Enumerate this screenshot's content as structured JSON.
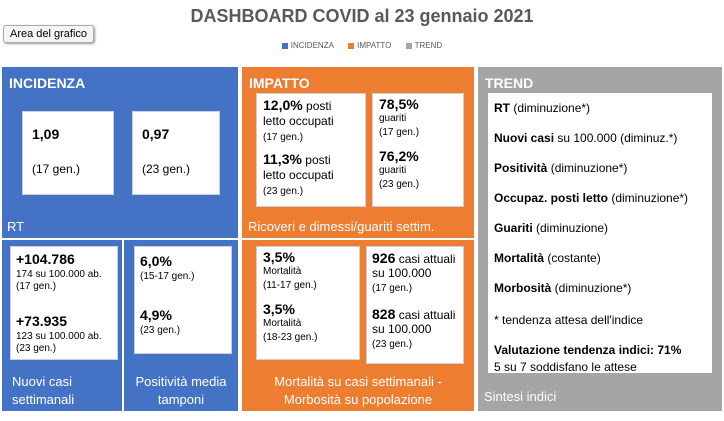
{
  "title": "DASHBOARD COVID al 23 gennaio 2021",
  "tooltip": "Area del grafico",
  "legend": [
    {
      "label": "INCIDENZA",
      "color": "#4472c4"
    },
    {
      "label": "IMPATTO",
      "color": "#ed7d31"
    },
    {
      "label": "TREND",
      "color": "#a5a5a5"
    }
  ],
  "incidenza": {
    "header": "INCIDENZA",
    "rt_label": "RT",
    "rt1_value": "1,09",
    "rt1_date": "(17  gen.)",
    "rt2_value": "0,97",
    "rt2_date": "(23 gen.)",
    "casi_1_value": "+104.786",
    "casi_1_rate": "174 su 100.000 ab.",
    "casi_1_date": "(17 gen.)",
    "casi_2_value": "+73.935",
    "casi_2_rate": "123 su 100.000 ab.",
    "casi_2_date": "(23 gen.)",
    "casi_caption_1": "Nuovi casi",
    "casi_caption_2": "settimanali",
    "pos_1_value": "6,0%",
    "pos_1_date": "(15-17 gen.)",
    "pos_2_value": "4,9%",
    "pos_2_date": "(23 gen.)",
    "pos_caption_1": "Positività media",
    "pos_caption_2": "tamponi"
  },
  "impatto": {
    "header": "IMPATTO",
    "letti_1_value": "12,0%",
    "letti_1_text_a": " posti",
    "letti_1_text_b": "letto occupati",
    "letti_1_date": "(17 gen.)",
    "letti_2_value": "11,3%",
    "letti_2_text_a": " posti",
    "letti_2_text_b": "letto occupati",
    "letti_2_date": "(23 gen.)",
    "guariti_1_value": "78,5%",
    "guariti_1_label": "guariti",
    "guariti_1_date": "(17 gen.)",
    "guariti_2_value": "76,2%",
    "guariti_2_label": "guariti",
    "guariti_2_date": "(23 gen.)",
    "ricoveri_caption": "Ricoveri e dimessi/guariti settim.",
    "mort_1_value": "3,5%",
    "mort_1_label": "Mortalità",
    "mort_1_date": "(11-17 gen.)",
    "mort_2_value": "3,5%",
    "mort_2_label": "Mortalità",
    "mort_2_date": "(18-23 gen.)",
    "morb_1_value": "926",
    "morb_1_text_a": " casi attuali",
    "morb_1_text_b": "su 100.000",
    "morb_1_date": "(17 gen.)",
    "morb_2_value": "828",
    "morb_2_text_a": " casi attuali",
    "morb_2_text_b": "su 100.000",
    "morb_2_date": "(23 gen.)",
    "mort_caption_1": "Mortalità su casi settimanali -",
    "mort_caption_2": "Morbosità su popolazione"
  },
  "trend": {
    "header": "TREND",
    "rows": [
      {
        "label": "RT",
        "note": " (diminuzione*)"
      },
      {
        "label": "Nuovi casi",
        "note": " su 100.000 (diminuz.*)"
      },
      {
        "label": "Positività",
        "note": "  (diminuzione*)"
      },
      {
        "label": "Occupaz. posti letto",
        "note": " (diminuzione*)"
      },
      {
        "label": "Guariti",
        "note": " (diminuzione)"
      },
      {
        "label": "Mortalità",
        "note": " (costante)"
      },
      {
        "label": "Morbosità",
        "note": "  (diminuzione*)"
      }
    ],
    "footnote": "* tendenza attesa dell'indice",
    "valutazione": "Valutazione tendenza indici: 71%",
    "soddisfano": "5 su 7 soddisfano le attese",
    "caption": "Sintesi indici"
  }
}
